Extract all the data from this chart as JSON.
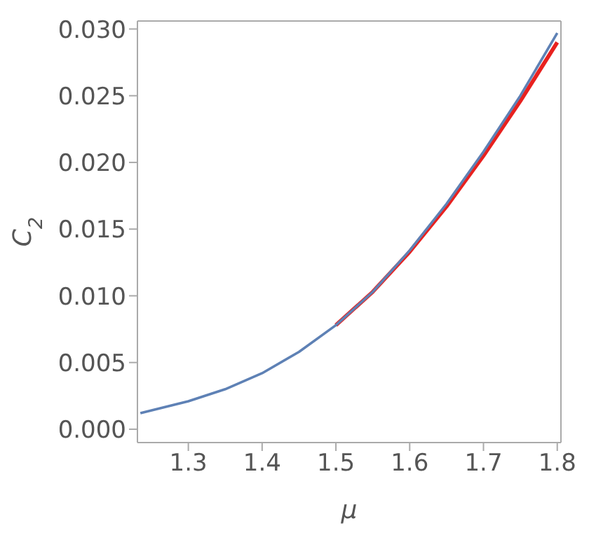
{
  "chart_data": {
    "type": "line",
    "xlabel": "μ",
    "ylabel": "C$_{2}$",
    "x": [
      1.235,
      1.3,
      1.35,
      1.4,
      1.45,
      1.5,
      1.55,
      1.6,
      1.65,
      1.7,
      1.75,
      1.8
    ],
    "series": [
      {
        "color": "#e8211f",
        "values": [
          null,
          null,
          null,
          null,
          null,
          0.0078,
          0.0103,
          0.0133,
          0.0167,
          0.0205,
          0.0246,
          0.029
        ]
      },
      {
        "color": "#5e81b5",
        "values": [
          0.0012,
          0.0021,
          0.003,
          0.0042,
          0.0058,
          0.0078,
          0.0103,
          0.0134,
          0.0169,
          0.0208,
          0.025,
          0.0297
        ]
      }
    ],
    "xlim": [
      1.231,
      1.805
    ],
    "ylim": [
      -0.001,
      0.0306
    ],
    "xticks": [
      1.3,
      1.4,
      1.5,
      1.6,
      1.7,
      1.8
    ],
    "yticks": [
      {
        "value": 0,
        "label": "0.000"
      },
      {
        "value": 0.005,
        "label": "0.005"
      },
      {
        "value": 0.01,
        "label": "0.010"
      },
      {
        "value": 0.015,
        "label": "0.015"
      },
      {
        "value": 0.02,
        "label": "0.020"
      },
      {
        "value": 0.025,
        "label": "0.025"
      },
      {
        "value": 0.03,
        "label": "0.030"
      }
    ],
    "grid": false,
    "legend": false
  }
}
